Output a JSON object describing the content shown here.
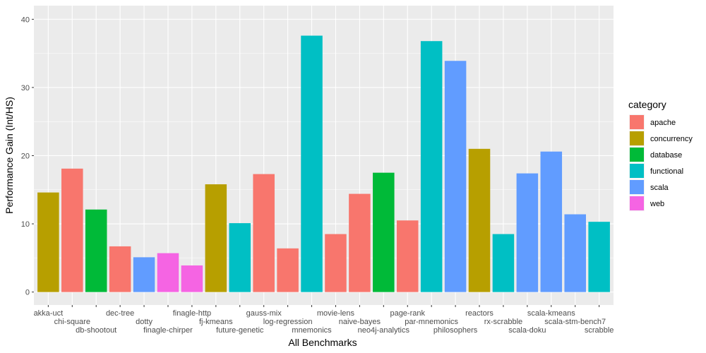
{
  "chart_data": {
    "type": "bar",
    "title": "",
    "xlabel": "All Benchmarks",
    "ylabel": "Performance Gain (Int/HS)",
    "ylim": [
      -1.9,
      42.0
    ],
    "yticks": [
      0,
      10,
      20,
      30,
      40
    ],
    "grid": true,
    "legend": {
      "title": "category",
      "placement": "right",
      "entries": [
        {
          "name": "apache",
          "color": "#F8766D"
        },
        {
          "name": "concurrency",
          "color": "#B79F00"
        },
        {
          "name": "database",
          "color": "#00BA38"
        },
        {
          "name": "functional",
          "color": "#00BFC4"
        },
        {
          "name": "scala",
          "color": "#619CFF"
        },
        {
          "name": "web",
          "color": "#F564E3"
        }
      ]
    },
    "bars": [
      {
        "label": "akka-uct",
        "value": 14.6,
        "category": "concurrency"
      },
      {
        "label": "chi-square",
        "value": 18.1,
        "category": "apache"
      },
      {
        "label": "db-shootout",
        "value": 12.1,
        "category": "database"
      },
      {
        "label": "dec-tree",
        "value": 6.7,
        "category": "apache"
      },
      {
        "label": "dotty",
        "value": 5.1,
        "category": "scala"
      },
      {
        "label": "finagle-chirper",
        "value": 5.7,
        "category": "web"
      },
      {
        "label": "finagle-http",
        "value": 3.9,
        "category": "web"
      },
      {
        "label": "fj-kmeans",
        "value": 15.8,
        "category": "concurrency"
      },
      {
        "label": "future-genetic",
        "value": 10.1,
        "category": "functional"
      },
      {
        "label": "gauss-mix",
        "value": 17.3,
        "category": "apache"
      },
      {
        "label": "log-regression",
        "value": 6.4,
        "category": "apache"
      },
      {
        "label": "mnemonics",
        "value": 37.6,
        "category": "functional"
      },
      {
        "label": "movie-lens",
        "value": 8.5,
        "category": "apache"
      },
      {
        "label": "naive-bayes",
        "value": 14.4,
        "category": "apache"
      },
      {
        "label": "neo4j-analytics",
        "value": 17.5,
        "category": "database"
      },
      {
        "label": "page-rank",
        "value": 10.5,
        "category": "apache"
      },
      {
        "label": "par-mnemonics",
        "value": 36.8,
        "category": "functional"
      },
      {
        "label": "philosophers",
        "value": 33.9,
        "category": "scala"
      },
      {
        "label": "reactors",
        "value": 21.0,
        "category": "concurrency"
      },
      {
        "label": "rx-scrabble",
        "value": 8.5,
        "category": "functional"
      },
      {
        "label": "scala-doku",
        "value": 17.4,
        "category": "scala"
      },
      {
        "label": "scala-kmeans",
        "value": 20.6,
        "category": "scala"
      },
      {
        "label": "scala-stm-bench7",
        "value": 11.4,
        "category": "scala"
      },
      {
        "label": "scrabble",
        "value": 10.3,
        "category": "functional"
      }
    ]
  }
}
